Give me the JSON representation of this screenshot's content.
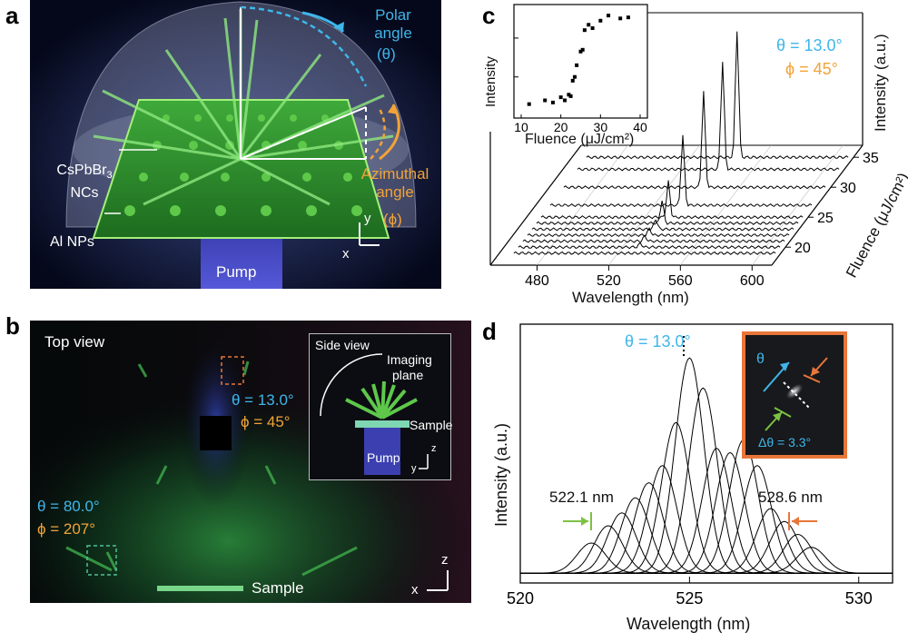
{
  "panels": {
    "a": {
      "letter": "a",
      "polar_label": "Polar angle",
      "polar_symbol": "(θ)",
      "azimuthal_label": "Azimuthal angle",
      "azimuthal_symbol": "(ϕ)",
      "nc_label_1": "CsPbBr",
      "nc_label_sub": "3",
      "nc_label_2": "NCs",
      "np_label": "Al NPs",
      "pump_label": "Pump",
      "axis_y": "y",
      "axis_x": "x"
    },
    "b": {
      "letter": "b",
      "top_view": "Top view",
      "theta1": "θ = 13.0°",
      "phi1": "ϕ = 45°",
      "theta2": "θ = 80.0°",
      "phi2": "ϕ = 207°",
      "sample_label": "Sample",
      "axis_z": "z",
      "axis_x": "x",
      "inset": {
        "side_view": "Side view",
        "imaging_1": "Imaging",
        "imaging_2": "plane",
        "sample": "Sample",
        "pump": "Pump",
        "axis_z": "z",
        "axis_y": "y"
      }
    },
    "c": {
      "letter": "c",
      "theta": "θ = 13.0°",
      "phi": "ϕ = 45°",
      "intensity_axis": "Intensity (a.u.)",
      "fluence_axis": "Fluence (μJ/cm²)",
      "wavelength_axis": "Wavelength (nm)"
    },
    "d": {
      "letter": "d",
      "theta": "θ = 13.0°",
      "left_peak": "522.1 nm",
      "right_peak": "528.6 nm",
      "inset_theta": "θ",
      "inset_dtheta": "Δθ = 3.3°"
    }
  },
  "chart_data": [
    {
      "type": "scatter",
      "id": "c-inset",
      "xlabel": "Fluence (μJ/cm²)",
      "ylabel": "Intensity",
      "xlim": [
        10,
        40
      ],
      "log_y": true,
      "x_ticks": [
        "10",
        "20",
        "30",
        "40"
      ],
      "x": [
        12,
        16,
        18,
        20,
        21,
        22,
        22.5,
        23,
        23.5,
        24,
        25,
        25.5,
        26,
        27,
        28,
        30,
        32,
        35,
        37
      ],
      "y": [
        0.02,
        0.025,
        0.022,
        0.03,
        0.025,
        0.035,
        0.032,
        0.08,
        0.1,
        0.2,
        0.45,
        0.5,
        1.6,
        2.2,
        1.8,
        2.8,
        3.8,
        3.2,
        3.4
      ]
    },
    {
      "type": "line",
      "id": "c-waterfall",
      "xlabel": "Wavelength (nm)",
      "ylabel": "Intensity (a.u.)",
      "zlabel": "Fluence (μJ/cm²)",
      "x_ticks": [
        "480",
        "520",
        "560",
        "600"
      ],
      "z_ticks": [
        "20",
        "25",
        "30",
        "35"
      ],
      "xlim": [
        460,
        610
      ],
      "series": [
        {
          "fluence": 19,
          "peak_wl": 0,
          "peak_height": 0
        },
        {
          "fluence": 20,
          "peak_wl": 530,
          "peak_height": 0.03
        },
        {
          "fluence": 21,
          "peak_wl": 530,
          "peak_height": 0.04
        },
        {
          "fluence": 22,
          "peak_wl": 530,
          "peak_height": 0.05
        },
        {
          "fluence": 23,
          "peak_wl": 531,
          "peak_height": 0.08
        },
        {
          "fluence": 24,
          "peak_wl": 532,
          "peak_height": 0.18
        },
        {
          "fluence": 25,
          "peak_wl": 533,
          "peak_height": 0.28
        },
        {
          "fluence": 27,
          "peak_wl": 536,
          "peak_height": 0.55
        },
        {
          "fluence": 30,
          "peak_wl": 540,
          "peak_height": 0.75
        },
        {
          "fluence": 33,
          "peak_wl": 543,
          "peak_height": 0.85
        },
        {
          "fluence": 35,
          "peak_wl": 546,
          "peak_height": 1.0
        }
      ]
    },
    {
      "type": "line",
      "id": "d-spectra",
      "xlabel": "Wavelength (nm)",
      "ylabel": "Intensity (a.u.)",
      "xlim": [
        520,
        531
      ],
      "x_ticks": [
        "520",
        "525",
        "530"
      ],
      "peak_centers": [
        522.1,
        522.6,
        523.0,
        523.4,
        523.8,
        524.2,
        524.6,
        525.0,
        525.4,
        525.8,
        526.2,
        526.6,
        527.0,
        527.4,
        527.8,
        528.2,
        528.6
      ],
      "peak_heights": [
        0.14,
        0.22,
        0.28,
        0.35,
        0.42,
        0.5,
        0.7,
        1.0,
        0.86,
        0.58,
        0.56,
        0.62,
        0.5,
        0.3,
        0.24,
        0.18,
        0.12
      ],
      "peak_width": 0.6
    }
  ]
}
